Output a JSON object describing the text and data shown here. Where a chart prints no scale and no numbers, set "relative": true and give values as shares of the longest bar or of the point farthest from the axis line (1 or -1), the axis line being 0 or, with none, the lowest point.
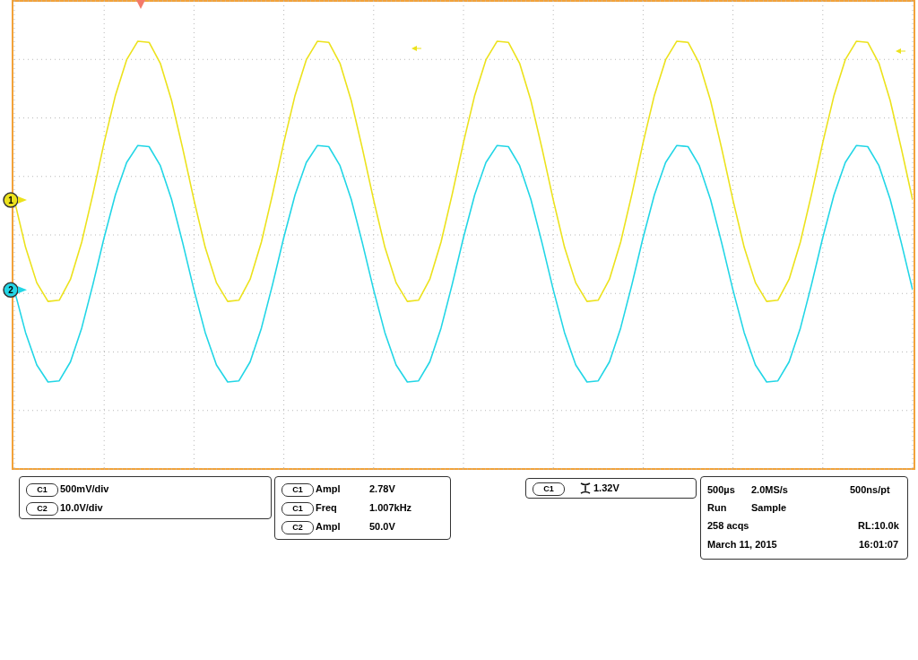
{
  "chart_data": {
    "type": "line",
    "relative": true,
    "grid": true,
    "legend": "left",
    "categories": [
      null,
      null,
      null,
      null,
      null,
      null,
      null,
      null,
      null,
      null,
      null,
      null,
      null,
      null,
      null,
      null,
      null,
      null,
      null,
      null,
      null,
      null,
      null,
      null,
      null,
      null,
      null,
      null,
      null,
      null,
      null,
      null,
      null,
      null,
      null,
      null,
      null,
      null,
      null,
      null,
      null,
      null,
      null,
      null,
      null,
      null,
      null,
      null,
      null,
      null,
      null,
      null,
      null,
      null,
      null,
      null,
      null,
      null,
      null,
      null,
      null,
      null,
      null,
      null,
      null,
      null,
      null,
      null,
      null,
      null,
      null,
      null,
      null,
      null,
      null,
      null,
      null,
      null,
      null,
      null,
      null
    ],
    "series": [
      {
        "name": "1",
        "color": "#ece21c",
        "values": [
          0.18,
          -0.064,
          -0.247,
          -0.343,
          -0.337,
          -0.229,
          -0.037,
          0.211,
          0.477,
          0.72,
          0.904,
          1,
          0.994,
          0.886,
          0.694,
          0.445,
          0.18,
          -0.064,
          -0.247,
          -0.343,
          -0.337,
          -0.229,
          -0.037,
          0.211,
          0.477,
          0.72,
          0.904,
          1,
          0.994,
          0.886,
          0.694,
          0.445,
          0.18,
          -0.064,
          -0.247,
          -0.343,
          -0.337,
          -0.229,
          -0.037,
          0.211,
          0.477,
          0.72,
          0.904,
          1,
          0.994,
          0.886,
          0.694,
          0.445,
          0.18,
          -0.064,
          -0.247,
          -0.343,
          -0.337,
          -0.229,
          -0.037,
          0.211,
          0.477,
          0.72,
          0.904,
          1,
          0.994,
          0.886,
          0.694,
          0.445,
          0.18,
          -0.064,
          -0.247,
          -0.343,
          -0.337,
          -0.229,
          -0.037,
          0.211,
          0.477,
          0.72,
          0.904,
          1,
          0.994,
          0.886,
          0.694,
          0.445,
          0.18
        ]
      },
      {
        "name": "2",
        "color": "#22d6e6",
        "values": [
          -0.284,
          -0.504,
          -0.671,
          -0.759,
          -0.753,
          -0.655,
          -0.481,
          -0.255,
          -0.013,
          0.207,
          0.374,
          0.462,
          0.456,
          0.358,
          0.184,
          -0.042,
          -0.284,
          -0.504,
          -0.671,
          -0.759,
          -0.753,
          -0.655,
          -0.481,
          -0.255,
          -0.013,
          0.207,
          0.374,
          0.462,
          0.456,
          0.358,
          0.184,
          -0.042,
          -0.284,
          -0.504,
          -0.671,
          -0.759,
          -0.753,
          -0.655,
          -0.481,
          -0.255,
          -0.013,
          0.207,
          0.374,
          0.462,
          0.456,
          0.358,
          0.184,
          -0.042,
          -0.284,
          -0.504,
          -0.671,
          -0.759,
          -0.753,
          -0.655,
          -0.481,
          -0.255,
          -0.013,
          0.207,
          0.374,
          0.462,
          0.456,
          0.358,
          0.184,
          -0.042,
          -0.284,
          -0.504,
          -0.671,
          -0.759,
          -0.753,
          -0.655,
          -0.481,
          -0.255,
          -0.013,
          0.207,
          0.374,
          0.462,
          0.456,
          0.358,
          0.184,
          -0.042,
          -0.284
        ]
      }
    ],
    "annotations": [
      "C1 500mV/div",
      "C2 10.0V/div",
      "C1 Ampl 2.78V",
      "C1 Freq 1.007kHz",
      "C2 Ampl 50.0V",
      "C1 1.32V",
      "500µs",
      "2.0MS/s",
      "500ns/pt",
      "Run",
      "Sample",
      "258 acqs",
      "RL:10.0k",
      "March 11, 2015",
      "16:01:07"
    ]
  }
}
